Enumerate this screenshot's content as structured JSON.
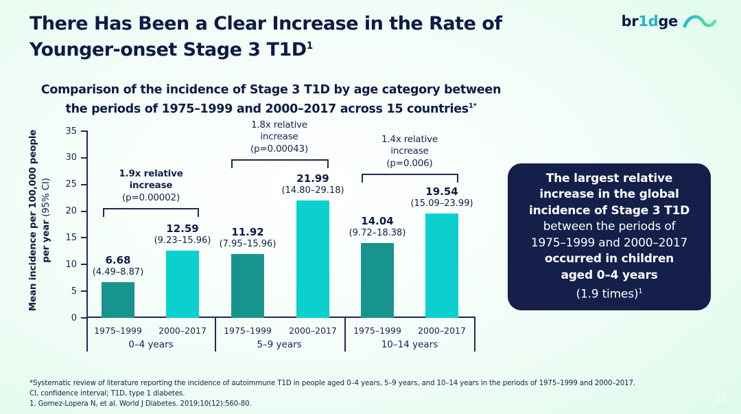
{
  "slide": {
    "title_line1": "There Has Been a Clear Increase in the Rate of",
    "title_line2": "Younger-onset Stage 3 T1D",
    "title_sup": "1",
    "page_number": "15"
  },
  "logo": {
    "text_pre": "br",
    "text_mid": "1d",
    "text_post": "ge",
    "icon": "bridge-wave-icon",
    "color_dark": "#0c1c45",
    "color_teal": "#1fb6c9",
    "icon_gradient_start": "#19b9c9",
    "icon_gradient_end": "#5ae6a5"
  },
  "subtitle": {
    "line1": "Comparison of the incidence of Stage 3 T1D by age category between",
    "line2": "the periods of 1975–1999 and 2000–2017 across 15 countries",
    "sup": "1*"
  },
  "chart_data": {
    "type": "bar",
    "title": "Comparison of the incidence of Stage 3 T1D by age category between the periods of 1975–1999 and 2000–2017 across 15 countries",
    "ylabel": "Mean incidence per 100,000 people per year (95% CI)",
    "ylabel_line1": "Mean incidence per 100,000 people",
    "ylabel_line2_bold": "per year",
    "ylabel_line2_regular": "(95% CI)",
    "ylim": [
      0,
      35
    ],
    "yticks": [
      0,
      5,
      10,
      15,
      20,
      25,
      30,
      35
    ],
    "grid": false,
    "legend_position": "none",
    "categories": [
      "0–4 years",
      "5–9 years",
      "10–14 years"
    ],
    "series": [
      {
        "name": "1975–1999",
        "values": [
          6.68,
          11.92,
          14.04
        ],
        "color": "#17948d"
      },
      {
        "name": "2000–2017",
        "values": [
          12.59,
          21.99,
          19.54
        ],
        "color": "#0bd0cd"
      }
    ],
    "groups": [
      {
        "age_label": "0–4 years",
        "annotation_line1": "1.9x relative",
        "annotation_line2": "increase",
        "annotation_p": "(p=0.00002)",
        "bars": [
          {
            "period": "1975–1999",
            "value": 6.68,
            "value_label": "6.68",
            "ci": "(4.49–8.87)"
          },
          {
            "period": "2000–2017",
            "value": 12.59,
            "value_label": "12.59",
            "ci": "(9.23–15.96)"
          }
        ]
      },
      {
        "age_label": "5–9 years",
        "annotation_line1": "1.8x relative",
        "annotation_line2": "increase",
        "annotation_p": "(p=0.00043)",
        "bars": [
          {
            "period": "1975–1999",
            "value": 11.92,
            "value_label": "11.92",
            "ci": "(7.95–15.96)"
          },
          {
            "period": "2000–2017",
            "value": 21.99,
            "value_label": "21.99",
            "ci": "(14.80–29.18)"
          }
        ]
      },
      {
        "age_label": "10–14 years",
        "annotation_line1": "1.4x relative",
        "annotation_line2": "increase",
        "annotation_p": "(p=0.006)",
        "bars": [
          {
            "period": "1975–1999",
            "value": 14.04,
            "value_label": "14.04",
            "ci": "(9.72–18.38)"
          },
          {
            "period": "2000–2017",
            "value": 19.54,
            "value_label": "19.54",
            "ci": "(15.09–23.99)"
          }
        ]
      }
    ]
  },
  "callout": {
    "background": "#141f4a",
    "lines": [
      {
        "text": "The largest relative"
      },
      {
        "text": "increase in the global"
      },
      {
        "text": "incidence of Stage 3 T1D"
      },
      {
        "text": "between the periods of"
      },
      {
        "text": "1975–1999 and 2000–2017"
      },
      {
        "text": "occurred in children"
      },
      {
        "text": "aged 0–4 years"
      },
      {
        "text": "(1.9 times)",
        "sup": "1"
      }
    ]
  },
  "footnotes": [
    "*Systematic review of literature reporting the incidence of autoimmune T1D in people aged 0–4 years, 5–9 years, and 10–14 years in the periods of 1975–1999 and 2000–2017.",
    "CI, confidence interval; T1D, type 1 diabetes.",
    "1. Gomez-Lopera N, et al. World J Diabetes. 2019;10(12):560-80."
  ]
}
